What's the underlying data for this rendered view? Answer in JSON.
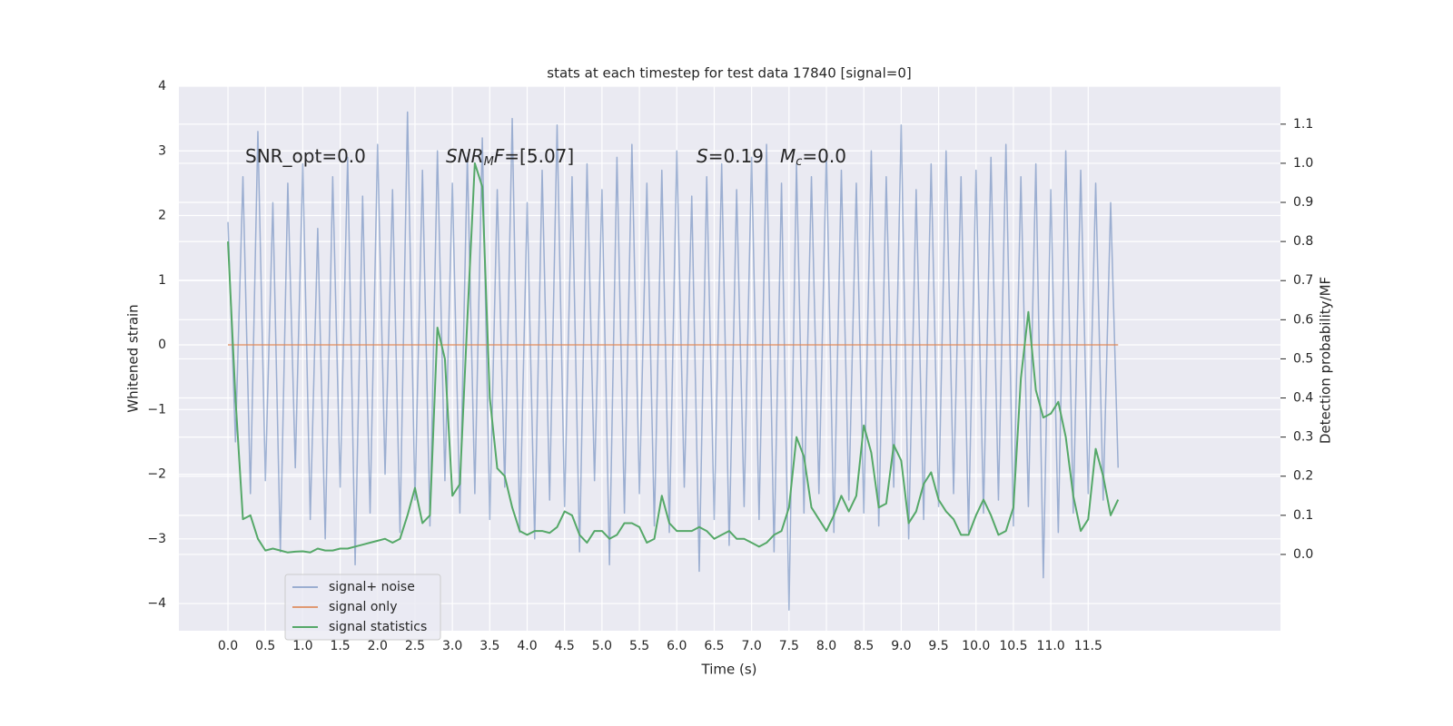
{
  "chart_data": {
    "type": "line",
    "title": "stats at each timestep for test data 17840 [signal=0]",
    "x_label": "Time (s)",
    "y_label": "Whitened strain",
    "y2_label": "Detection probability/MF",
    "annotations": [
      [
        "SNR_opt=0.0"
      ],
      [
        "SNR",
        "M",
        "F",
        "=[5.07]"
      ],
      [
        "S",
        "=0.19"
      ],
      [
        "M",
        "c",
        "=0.0"
      ]
    ],
    "x": [
      0,
      0.1,
      0.2,
      0.3,
      0.4,
      0.5,
      0.6,
      0.7,
      0.8,
      0.9,
      1.0,
      1.1,
      1.2,
      1.3,
      1.4,
      1.5,
      1.6,
      1.7,
      1.8,
      1.9,
      2.0,
      2.1,
      2.2,
      2.3,
      2.4,
      2.5,
      2.6,
      2.7,
      2.8,
      2.9,
      3.0,
      3.1,
      3.2,
      3.3,
      3.4,
      3.5,
      3.6,
      3.7,
      3.8,
      3.9,
      4.0,
      4.1,
      4.2,
      4.3,
      4.4,
      4.5,
      4.6,
      4.7,
      4.8,
      4.9,
      5.0,
      5.1,
      5.2,
      5.3,
      5.4,
      5.5,
      5.6,
      5.7,
      5.8,
      5.9,
      6.0,
      6.1,
      6.2,
      6.3,
      6.4,
      6.5,
      6.6,
      6.7,
      6.8,
      6.9,
      7.0,
      7.1,
      7.2,
      7.3,
      7.4,
      7.5,
      7.6,
      7.7,
      7.8,
      7.9,
      8.0,
      8.1,
      8.2,
      8.3,
      8.4,
      8.5,
      8.6,
      8.7,
      8.8,
      8.9,
      9.0,
      9.1,
      9.2,
      9.3,
      9.4,
      9.5,
      9.6,
      9.7,
      9.8,
      9.9,
      10.0,
      10.1,
      10.2,
      10.3,
      10.4,
      10.5,
      10.6,
      10.7,
      10.8,
      10.9,
      11.0,
      11.1,
      11.2,
      11.3,
      11.4,
      11.5,
      11.6,
      11.7,
      11.8,
      11.9
    ],
    "series": [
      {
        "name": "signal+ noise",
        "color": "#4c72b0",
        "opacity": 0.5,
        "axis": "y",
        "values": [
          1.9,
          -1.5,
          2.6,
          -2.3,
          3.3,
          -2.1,
          2.2,
          -3.2,
          2.5,
          -1.9,
          2.8,
          -2.7,
          1.8,
          -3.0,
          2.6,
          -2.2,
          2.9,
          -3.4,
          2.3,
          -2.6,
          3.1,
          -2.0,
          2.4,
          -2.9,
          3.6,
          -2.4,
          2.7,
          -2.8,
          3.0,
          -2.1,
          2.5,
          -2.6,
          2.9,
          -2.3,
          3.2,
          -2.7,
          2.4,
          -2.2,
          3.5,
          -2.9,
          2.2,
          -3.0,
          2.7,
          -2.4,
          3.4,
          -2.5,
          2.6,
          -3.2,
          2.8,
          -2.1,
          2.4,
          -3.4,
          2.9,
          -2.6,
          3.1,
          -2.3,
          2.5,
          -2.8,
          2.7,
          -2.9,
          3.0,
          -2.2,
          2.3,
          -3.5,
          2.6,
          -2.7,
          2.8,
          -3.1,
          2.4,
          -2.5,
          2.9,
          -2.7,
          3.1,
          -3.2,
          2.5,
          -4.1,
          2.8,
          -2.6,
          2.6,
          -2.3,
          3.0,
          -2.9,
          2.7,
          -2.4,
          2.5,
          -2.6,
          3.0,
          -2.8,
          2.6,
          -2.2,
          3.4,
          -3.0,
          2.4,
          -2.7,
          2.8,
          -2.5,
          3.0,
          -2.3,
          2.6,
          -2.9,
          2.7,
          -2.6,
          2.9,
          -2.4,
          3.1,
          -2.8,
          2.6,
          -2.5,
          2.8,
          -3.6,
          2.4,
          -2.9,
          3.0,
          -2.6,
          2.7,
          -2.3,
          2.5,
          -2.4,
          2.2,
          -1.9
        ]
      },
      {
        "name": "signal only",
        "color": "#dd8452",
        "opacity": 0.8,
        "axis": "y",
        "values": [
          0,
          0,
          0,
          0,
          0,
          0,
          0,
          0,
          0,
          0,
          0,
          0,
          0,
          0,
          0,
          0,
          0,
          0,
          0,
          0,
          0,
          0,
          0,
          0,
          0,
          0,
          0,
          0,
          0,
          0,
          0,
          0,
          0,
          0,
          0,
          0,
          0,
          0,
          0,
          0,
          0,
          0,
          0,
          0,
          0,
          0,
          0,
          0,
          0,
          0,
          0,
          0,
          0,
          0,
          0,
          0,
          0,
          0,
          0,
          0,
          0,
          0,
          0,
          0,
          0,
          0,
          0,
          0,
          0,
          0,
          0,
          0,
          0,
          0,
          0,
          0,
          0,
          0,
          0,
          0,
          0,
          0,
          0,
          0,
          0,
          0,
          0,
          0,
          0,
          0,
          0,
          0,
          0,
          0,
          0,
          0,
          0,
          0,
          0,
          0,
          0,
          0,
          0,
          0,
          0,
          0,
          0,
          0,
          0,
          0,
          0,
          0,
          0,
          0,
          0,
          0,
          0,
          0,
          0,
          0
        ]
      },
      {
        "name": "signal statistics",
        "color": "#55a868",
        "opacity": 1,
        "axis": "y2",
        "values": [
          0.8,
          0.4,
          0.09,
          0.1,
          0.04,
          0.01,
          0.015,
          0.01,
          0.005,
          0.007,
          0.008,
          0.005,
          0.015,
          0.01,
          0.01,
          0.015,
          0.015,
          0.02,
          0.025,
          0.03,
          0.035,
          0.04,
          0.03,
          0.04,
          0.1,
          0.17,
          0.08,
          0.1,
          0.58,
          0.5,
          0.15,
          0.18,
          0.6,
          1.0,
          0.94,
          0.4,
          0.22,
          0.2,
          0.12,
          0.06,
          0.05,
          0.06,
          0.06,
          0.055,
          0.07,
          0.11,
          0.1,
          0.05,
          0.03,
          0.06,
          0.06,
          0.04,
          0.05,
          0.08,
          0.08,
          0.07,
          0.03,
          0.04,
          0.15,
          0.08,
          0.06,
          0.06,
          0.06,
          0.07,
          0.06,
          0.04,
          0.05,
          0.06,
          0.04,
          0.04,
          0.03,
          0.02,
          0.03,
          0.05,
          0.06,
          0.12,
          0.3,
          0.25,
          0.12,
          0.09,
          0.06,
          0.1,
          0.15,
          0.11,
          0.15,
          0.33,
          0.26,
          0.12,
          0.13,
          0.28,
          0.24,
          0.08,
          0.11,
          0.18,
          0.21,
          0.14,
          0.11,
          0.09,
          0.05,
          0.05,
          0.1,
          0.14,
          0.1,
          0.05,
          0.06,
          0.12,
          0.45,
          0.62,
          0.42,
          0.35,
          0.36,
          0.39,
          0.3,
          0.15,
          0.06,
          0.09,
          0.27,
          0.2,
          0.1,
          0.14
        ]
      }
    ],
    "xlim": [
      -0.656,
      14.07
    ],
    "xticks": [
      {
        "value": 0,
        "label": "0.0"
      },
      {
        "value": 0.5,
        "label": "0.5"
      },
      {
        "value": 1,
        "label": "1.0"
      },
      {
        "value": 1.5,
        "label": "1.5"
      },
      {
        "value": 2,
        "label": "2.0"
      },
      {
        "value": 2.5,
        "label": "2.5"
      },
      {
        "value": 3,
        "label": "3.0"
      },
      {
        "value": 3.5,
        "label": "3.5"
      },
      {
        "value": 4,
        "label": "4.0"
      },
      {
        "value": 4.5,
        "label": "4.5"
      },
      {
        "value": 5,
        "label": "5.0"
      },
      {
        "value": 5.5,
        "label": "5.5"
      },
      {
        "value": 6,
        "label": "6.0"
      },
      {
        "value": 6.5,
        "label": "6.5"
      },
      {
        "value": 7,
        "label": "7.0"
      },
      {
        "value": 7.5,
        "label": "7.5"
      },
      {
        "value": 8,
        "label": "8.0"
      },
      {
        "value": 8.5,
        "label": "8.5"
      },
      {
        "value": 9,
        "label": "9.0"
      },
      {
        "value": 9.5,
        "label": "9.5"
      },
      {
        "value": 10,
        "label": "10.0"
      },
      {
        "value": 10.5,
        "label": "10.5"
      },
      {
        "value": 11,
        "label": "11.0"
      },
      {
        "value": 11.5,
        "label": "11.5"
      }
    ],
    "ylim": [
      -4.42,
      4
    ],
    "yticks": [
      {
        "value": -4,
        "label": "−4"
      },
      {
        "value": -3,
        "label": "−3"
      },
      {
        "value": -2,
        "label": "−2"
      },
      {
        "value": -1,
        "label": "−1"
      },
      0,
      1,
      2,
      3,
      4
    ],
    "y2lim": [
      -0.195,
      1.197
    ],
    "y2ticks": [
      {
        "value": 0,
        "label": "0.0"
      },
      {
        "value": 0.1,
        "label": "0.1"
      },
      {
        "value": 0.2,
        "label": "0.2"
      },
      {
        "value": 0.3,
        "label": "0.3"
      },
      {
        "value": 0.4,
        "label": "0.4"
      },
      {
        "value": 0.5,
        "label": "0.5"
      },
      {
        "value": 0.6,
        "label": "0.6"
      },
      {
        "value": 0.7,
        "label": "0.7"
      },
      {
        "value": 0.8,
        "label": "0.8"
      },
      {
        "value": 0.9,
        "label": "0.9"
      },
      {
        "value": 1,
        "label": "1.0"
      },
      {
        "value": 1.1,
        "label": "1.1"
      }
    ],
    "grid": true,
    "legend": "lower left"
  }
}
